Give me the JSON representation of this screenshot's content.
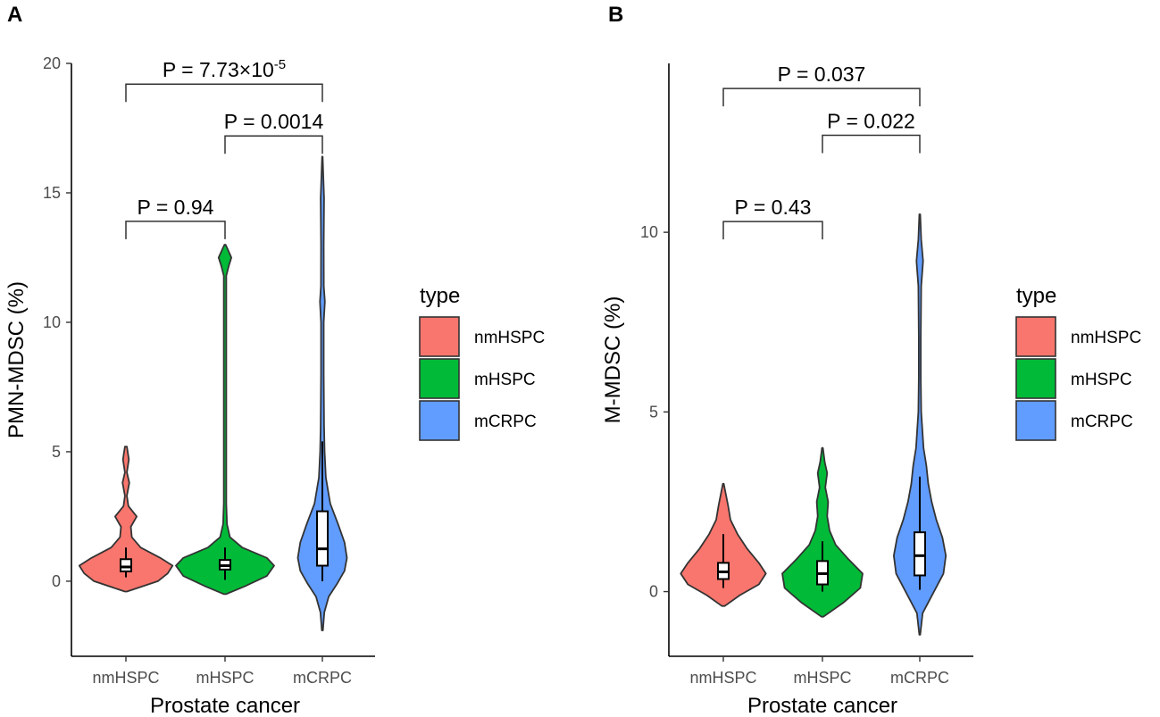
{
  "chart_data": [
    {
      "panel": "A",
      "type": "violin",
      "xlabel": "Prostate cancer",
      "ylabel": "PMN-MDSC (%)",
      "categories": [
        "nmHSPC",
        "mHSPC",
        "mCRPC"
      ],
      "yticks": [
        0,
        5,
        10,
        15,
        20
      ],
      "ylim": [
        -2.9,
        20
      ],
      "series": [
        {
          "name": "nmHSPC",
          "color": "#F8766D",
          "q1": 0.38,
          "median": 0.55,
          "q3": 0.85,
          "whisker_low": 0.15,
          "whisker_high": 1.3,
          "min": -0.4,
          "max": 5.2,
          "density": [
            [
              -0.4,
              0.02
            ],
            [
              0.0,
              0.65
            ],
            [
              0.3,
              0.85
            ],
            [
              0.6,
              0.95
            ],
            [
              0.9,
              0.7
            ],
            [
              1.3,
              0.3
            ],
            [
              1.7,
              0.12
            ],
            [
              2.1,
              0.1
            ],
            [
              2.5,
              0.22
            ],
            [
              2.9,
              0.05
            ],
            [
              3.3,
              0.02
            ],
            [
              3.8,
              0.07
            ],
            [
              4.2,
              0.02
            ],
            [
              4.7,
              0.06
            ],
            [
              5.2,
              0.02
            ]
          ]
        },
        {
          "name": "mHSPC",
          "color": "#00BA38",
          "q1": 0.45,
          "median": 0.6,
          "q3": 0.82,
          "whisker_low": 0.05,
          "whisker_high": 1.3,
          "min": -0.5,
          "max": 13.0,
          "density": [
            [
              -0.5,
              0.02
            ],
            [
              -0.2,
              0.4
            ],
            [
              0.2,
              0.85
            ],
            [
              0.6,
              1.0
            ],
            [
              0.9,
              0.85
            ],
            [
              1.3,
              0.35
            ],
            [
              1.7,
              0.1
            ],
            [
              2.2,
              0.04
            ],
            [
              3,
              0.025
            ],
            [
              6,
              0.025
            ],
            [
              10,
              0.025
            ],
            [
              11.8,
              0.025
            ],
            [
              12.2,
              0.08
            ],
            [
              12.5,
              0.13
            ],
            [
              12.8,
              0.06
            ],
            [
              13.0,
              0.01
            ]
          ]
        },
        {
          "name": "mCRPC",
          "color": "#619CFF",
          "q1": 0.6,
          "median": 1.25,
          "q3": 2.7,
          "whisker_low": 0.0,
          "whisker_high": 5.4,
          "min": -1.9,
          "max": 16.4,
          "density": [
            [
              -1.9,
              0.01
            ],
            [
              -1.2,
              0.04
            ],
            [
              -0.6,
              0.13
            ],
            [
              -0.1,
              0.3
            ],
            [
              0.4,
              0.45
            ],
            [
              0.9,
              0.5
            ],
            [
              1.5,
              0.45
            ],
            [
              2.2,
              0.32
            ],
            [
              3,
              0.16
            ],
            [
              4,
              0.07
            ],
            [
              5,
              0.045
            ],
            [
              6,
              0.035
            ],
            [
              8,
              0.028
            ],
            [
              10,
              0.028
            ],
            [
              10.8,
              0.05
            ],
            [
              11.4,
              0.03
            ],
            [
              13,
              0.028
            ],
            [
              14.8,
              0.035
            ],
            [
              15.6,
              0.02
            ],
            [
              16.4,
              0.005
            ]
          ]
        }
      ],
      "comparisons": [
        {
          "from": "nmHSPC",
          "to": "mCRPC",
          "text": "P = 7.73×10",
          "superscript": "-5",
          "y": 19.2
        },
        {
          "from": "mHSPC",
          "to": "mCRPC",
          "text": "P = 0.0014",
          "superscript": "",
          "y": 17.2
        },
        {
          "from": "nmHSPC",
          "to": "mHSPC",
          "text": "P = 0.94",
          "superscript": "",
          "y": 13.9
        }
      ],
      "legend": {
        "title": "type",
        "items": [
          "nmHSPC",
          "mHSPC",
          "mCRPC"
        ]
      }
    },
    {
      "panel": "B",
      "type": "violin",
      "xlabel": "Prostate cancer",
      "ylabel": "M-MDSC (%)",
      "categories": [
        "nmHSPC",
        "mHSPC",
        "mCRPC"
      ],
      "yticks": [
        0,
        5,
        10
      ],
      "ylim": [
        -1.8,
        14.7
      ],
      "series": [
        {
          "name": "nmHSPC",
          "color": "#F8766D",
          "q1": 0.35,
          "median": 0.55,
          "q3": 0.8,
          "whisker_low": 0.1,
          "whisker_high": 1.6,
          "min": -0.4,
          "max": 3.0,
          "density": [
            [
              -0.4,
              0.03
            ],
            [
              -0.1,
              0.35
            ],
            [
              0.2,
              0.75
            ],
            [
              0.5,
              0.9
            ],
            [
              0.8,
              0.75
            ],
            [
              1.2,
              0.5
            ],
            [
              1.6,
              0.3
            ],
            [
              2.0,
              0.15
            ],
            [
              2.4,
              0.1
            ],
            [
              2.8,
              0.04
            ],
            [
              3.0,
              0.01
            ]
          ]
        },
        {
          "name": "mHSPC",
          "color": "#00BA38",
          "q1": 0.2,
          "median": 0.5,
          "q3": 0.85,
          "whisker_low": 0.0,
          "whisker_high": 1.4,
          "min": -0.7,
          "max": 4.0,
          "density": [
            [
              -0.7,
              0.02
            ],
            [
              -0.3,
              0.45
            ],
            [
              0.1,
              0.8
            ],
            [
              0.5,
              0.85
            ],
            [
              0.9,
              0.55
            ],
            [
              1.3,
              0.28
            ],
            [
              1.7,
              0.15
            ],
            [
              2.1,
              0.1
            ],
            [
              2.5,
              0.12
            ],
            [
              2.9,
              0.06
            ],
            [
              3.3,
              0.1
            ],
            [
              3.6,
              0.05
            ],
            [
              4.0,
              0.01
            ]
          ]
        },
        {
          "name": "mCRPC",
          "color": "#619CFF",
          "q1": 0.45,
          "median": 1.0,
          "q3": 1.65,
          "whisker_low": 0.05,
          "whisker_high": 3.2,
          "min": -1.2,
          "max": 10.5,
          "density": [
            [
              -1.2,
              0.01
            ],
            [
              -0.6,
              0.06
            ],
            [
              0.0,
              0.3
            ],
            [
              0.5,
              0.5
            ],
            [
              1.0,
              0.55
            ],
            [
              1.5,
              0.48
            ],
            [
              2.0,
              0.35
            ],
            [
              2.5,
              0.25
            ],
            [
              3.0,
              0.18
            ],
            [
              3.5,
              0.14
            ],
            [
              4.0,
              0.08
            ],
            [
              5,
              0.03
            ],
            [
              6,
              0.02
            ],
            [
              7,
              0.02
            ],
            [
              8.5,
              0.03
            ],
            [
              9.2,
              0.07
            ],
            [
              9.8,
              0.03
            ],
            [
              10.5,
              0.01
            ]
          ]
        }
      ],
      "comparisons": [
        {
          "from": "nmHSPC",
          "to": "mCRPC",
          "text": "P = 0.037",
          "superscript": "",
          "y": 14.0
        },
        {
          "from": "mHSPC",
          "to": "mCRPC",
          "text": "P = 0.022",
          "superscript": "",
          "y": 12.7
        },
        {
          "from": "nmHSPC",
          "to": "mHSPC",
          "text": "P = 0.43",
          "superscript": "",
          "y": 10.3
        }
      ],
      "legend": {
        "title": "type",
        "items": [
          "nmHSPC",
          "mHSPC",
          "mCRPC"
        ]
      }
    }
  ]
}
